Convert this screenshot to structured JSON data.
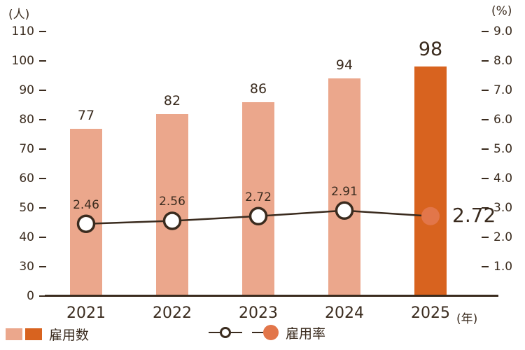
{
  "chart_data": {
    "type": "combo-bar-line",
    "categories": [
      "2021",
      "2022",
      "2023",
      "2024",
      "2025"
    ],
    "series": [
      {
        "name": "雇用数",
        "type": "bar",
        "axis": "left",
        "unit": "人",
        "values": [
          77,
          82,
          86,
          94,
          98
        ]
      },
      {
        "name": "雇用率",
        "type": "line",
        "axis": "right",
        "unit": "%",
        "values": [
          2.46,
          2.56,
          2.72,
          2.91,
          2.72
        ]
      }
    ],
    "highlight_index": 4,
    "left_axis": {
      "title": "(人)",
      "ticks": [
        110,
        100,
        90,
        80,
        70,
        60,
        50,
        40,
        30,
        0
      ]
    },
    "right_axis": {
      "title": "(%)",
      "ticks": [
        "9.0",
        "8.0",
        "7.0",
        "6.0",
        "5.0",
        "4.0",
        "3.0",
        "2.0",
        "1.0"
      ]
    },
    "x_axis": {
      "title": "(年)"
    },
    "colors": {
      "bar": "#EBA78C",
      "bar_highlight": "#D8631F",
      "line": "#3A2B1E",
      "marker_fill": "#FFFFFF",
      "marker_highlight": "#E2764A",
      "ink": "#3A2B1E"
    }
  },
  "legend": {
    "bars_label": "雇用数",
    "line_label": "雇用率"
  }
}
